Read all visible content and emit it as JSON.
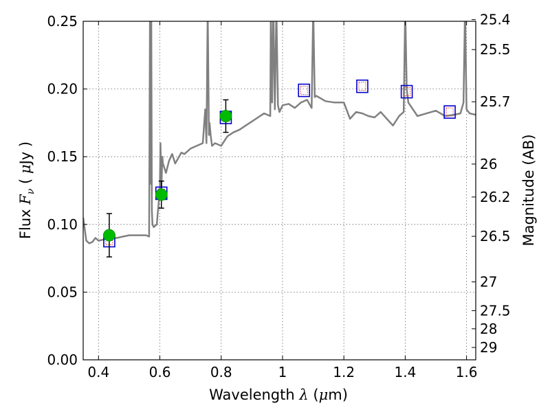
{
  "chart_data": {
    "type": "scatter",
    "xlabel": {
      "prefix": "Wavelength",
      "symbol": "λ",
      "unit_open": "(",
      "unit_mu": "μ",
      "unit_rest": "m)"
    },
    "ylabel": {
      "prefix": "Flux",
      "symbol": "F",
      "sub": "ν",
      "unit_open": "(",
      "unit_mu": "μ",
      "unit_rest": "Jy )"
    },
    "y2label": "Magnitude (AB)",
    "xlim": [
      0.35,
      1.63
    ],
    "ylim": [
      0.0,
      0.25
    ],
    "xticks": [
      0.4,
      0.6,
      0.8,
      1.0,
      1.2,
      1.4,
      1.6
    ],
    "xtick_labels": [
      "0.4",
      "0.6",
      "0.8",
      "1",
      "1.2",
      "1.4",
      "1.6"
    ],
    "yticks": [
      0.0,
      0.05,
      0.1,
      0.15,
      0.2,
      0.25
    ],
    "ytick_labels": [
      "0.00",
      "0.05",
      "0.10",
      "0.15",
      "0.20",
      "0.25"
    ],
    "y2ticks": [
      25.4,
      25.5,
      25.7,
      26,
      26.2,
      26.5,
      27,
      27.5,
      28,
      29
    ],
    "y2tick_labels": [
      "25.4",
      "25.5",
      "25.7",
      "26",
      "26.2",
      "26.5",
      "27",
      "27.5",
      "28",
      "29"
    ],
    "grid": true,
    "colors": {
      "model_line": "#808080",
      "observed": "#00bb00",
      "model_box": "#0000cc",
      "model_box_inner": "#dd3333"
    },
    "model_spectrum": {
      "x": [
        0.35,
        0.36,
        0.37,
        0.38,
        0.39,
        0.4,
        0.42,
        0.44,
        0.46,
        0.48,
        0.5,
        0.52,
        0.54,
        0.555,
        0.565,
        0.568,
        0.57,
        0.572,
        0.574,
        0.576,
        0.58,
        0.59,
        0.6,
        0.602,
        0.605,
        0.608,
        0.61,
        0.62,
        0.63,
        0.64,
        0.65,
        0.66,
        0.67,
        0.68,
        0.7,
        0.72,
        0.74,
        0.748,
        0.752,
        0.756,
        0.76,
        0.762,
        0.766,
        0.77,
        0.78,
        0.8,
        0.82,
        0.84,
        0.86,
        0.88,
        0.9,
        0.92,
        0.94,
        0.96,
        0.962,
        0.966,
        0.97,
        0.975,
        0.98,
        0.985,
        0.99,
        1.0,
        1.02,
        1.04,
        1.06,
        1.08,
        1.095,
        1.1,
        1.105,
        1.11,
        1.14,
        1.17,
        1.2,
        1.22,
        1.24,
        1.26,
        1.28,
        1.3,
        1.32,
        1.34,
        1.36,
        1.38,
        1.395,
        1.4,
        1.405,
        1.41,
        1.44,
        1.47,
        1.5,
        1.53,
        1.56,
        1.58,
        1.59,
        1.595,
        1.6,
        1.61,
        1.63
      ],
      "y": [
        0.105,
        0.088,
        0.086,
        0.087,
        0.09,
        0.088,
        0.089,
        0.09,
        0.09,
        0.091,
        0.092,
        0.092,
        0.092,
        0.092,
        0.091,
        0.26,
        0.13,
        0.26,
        0.11,
        0.1,
        0.098,
        0.1,
        0.126,
        0.16,
        0.128,
        0.15,
        0.145,
        0.138,
        0.147,
        0.152,
        0.145,
        0.149,
        0.153,
        0.152,
        0.156,
        0.158,
        0.16,
        0.185,
        0.16,
        0.26,
        0.166,
        0.175,
        0.165,
        0.158,
        0.16,
        0.158,
        0.165,
        0.168,
        0.17,
        0.173,
        0.176,
        0.179,
        0.182,
        0.18,
        0.26,
        0.19,
        0.26,
        0.185,
        0.26,
        0.188,
        0.183,
        0.188,
        0.189,
        0.186,
        0.19,
        0.192,
        0.186,
        0.26,
        0.194,
        0.195,
        0.191,
        0.19,
        0.19,
        0.178,
        0.183,
        0.182,
        0.18,
        0.179,
        0.183,
        0.178,
        0.173,
        0.18,
        0.183,
        0.26,
        0.2,
        0.19,
        0.18,
        0.182,
        0.184,
        0.18,
        0.181,
        0.182,
        0.19,
        0.26,
        0.185,
        0.182,
        0.181
      ]
    },
    "observed": {
      "x": [
        0.435,
        0.605,
        0.815
      ],
      "y": [
        0.092,
        0.122,
        0.18
      ],
      "yerr": [
        0.016,
        0.01,
        0.012
      ]
    },
    "model_boxes": {
      "x": [
        0.435,
        0.605,
        0.815,
        1.07,
        1.26,
        1.405,
        1.545
      ],
      "y": [
        0.088,
        0.123,
        0.179,
        0.199,
        0.202,
        0.198,
        0.183
      ]
    }
  }
}
